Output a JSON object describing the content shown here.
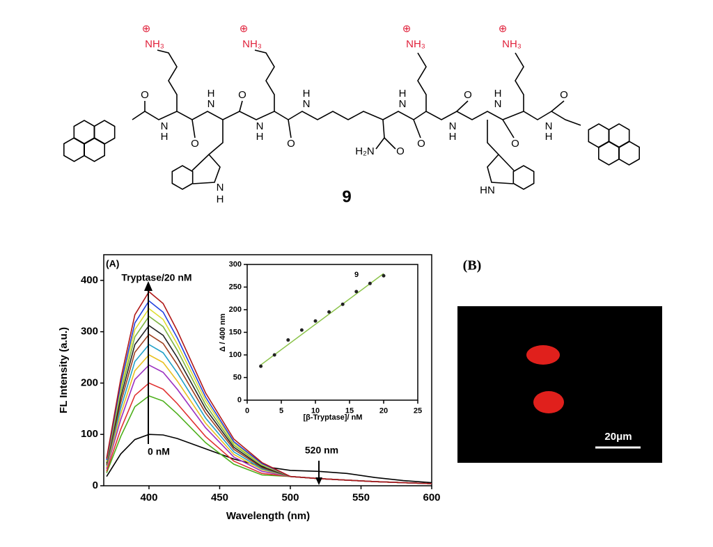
{
  "structure": {
    "charge": [
      "⊕",
      "⊕",
      "⊕",
      "⊕"
    ],
    "ammonium": [
      "NH₃",
      "NH₃",
      "NH₃",
      "NH₃"
    ],
    "atoms": [
      "O",
      "N",
      "H",
      "O",
      "H",
      "N",
      "O",
      "N",
      "H",
      "O",
      "H",
      "N",
      "O",
      "H",
      "N",
      "O",
      "N",
      "H",
      "O",
      "H",
      "N",
      "O",
      "N",
      "H",
      "O",
      "N",
      "H",
      "HN"
    ],
    "amide": "H₂N",
    "compound": "9"
  },
  "chart_data": [
    {
      "type": "line",
      "panel_label": "(A)",
      "x_label": "Wavelength (nm)",
      "y_label": "FL Intensity (a.u.)",
      "annotations": [
        "Tryptase/20 nM",
        "0 nM",
        "520 nm"
      ],
      "x": [
        370,
        380,
        390,
        400,
        410,
        420,
        440,
        460,
        480,
        500,
        520,
        540,
        560,
        580,
        600
      ],
      "xlim": [
        368,
        600
      ],
      "xticks": [
        400,
        450,
        500,
        550,
        600
      ],
      "ylim": [
        0,
        450
      ],
      "yticks": [
        0,
        100,
        200,
        300,
        400
      ],
      "series": [
        {
          "color": "#000000",
          "values": [
            18,
            62,
            90,
            100,
            99,
            92,
            72,
            52,
            38,
            30,
            28,
            24,
            16,
            10,
            6
          ]
        },
        {
          "color": "#4caf1a",
          "values": [
            25,
            96,
            154,
            175,
            165,
            140,
            84,
            42,
            21,
            18,
            14,
            11,
            8,
            6,
            4
          ]
        },
        {
          "color": "#e03030",
          "values": [
            28,
            110,
            176,
            200,
            188,
            160,
            96,
            48,
            24,
            18,
            14,
            11,
            8,
            6,
            4
          ]
        },
        {
          "color": "#9b30c0",
          "values": [
            33,
            129,
            207,
            235,
            221,
            188,
            113,
            56,
            28,
            18,
            14,
            11,
            8,
            6,
            4
          ]
        },
        {
          "color": "#e8c020",
          "values": [
            36,
            140,
            224,
            255,
            240,
            204,
            122,
            61,
            31,
            18,
            14,
            11,
            8,
            6,
            4
          ]
        },
        {
          "color": "#20a0c8",
          "values": [
            39,
            151,
            242,
            275,
            259,
            220,
            132,
            66,
            33,
            18,
            14,
            11,
            8,
            6,
            4
          ]
        },
        {
          "color": "#a04020",
          "values": [
            41,
            162,
            260,
            295,
            277,
            236,
            142,
            71,
            35,
            18,
            14,
            11,
            8,
            6,
            4
          ]
        },
        {
          "color": "#222222",
          "values": [
            44,
            172,
            275,
            312,
            293,
            250,
            150,
            75,
            37,
            18,
            14,
            11,
            8,
            6,
            4
          ]
        },
        {
          "color": "#7cb342",
          "values": [
            46,
            182,
            290,
            330,
            310,
            264,
            158,
            79,
            40,
            18,
            14,
            11,
            8,
            6,
            4
          ]
        },
        {
          "color": "#dede30",
          "values": [
            48,
            190,
            304,
            345,
            324,
            276,
            166,
            83,
            41,
            18,
            14,
            11,
            8,
            6,
            4
          ]
        },
        {
          "color": "#2040e0",
          "values": [
            50,
            198,
            317,
            360,
            338,
            288,
            173,
            86,
            43,
            18,
            14,
            11,
            8,
            6,
            4
          ]
        },
        {
          "color": "#b01818",
          "values": [
            53,
            208,
            333,
            378,
            355,
            302,
            181,
            91,
            45,
            18,
            14,
            11,
            8,
            6,
            4
          ]
        }
      ]
    },
    {
      "type": "scatter",
      "annotation": "9",
      "x_label": "[β-Tryptase]/ nM",
      "y_label": "Δ / 400 nm",
      "x": [
        2,
        4,
        6,
        8,
        10,
        12,
        14,
        16,
        18,
        20
      ],
      "values": [
        75,
        100,
        133,
        155,
        175,
        195,
        212,
        240,
        258,
        275
      ],
      "color": "#222222",
      "fit": {
        "x": [
          2,
          20
        ],
        "values": [
          78,
          280
        ],
        "color": "#8bc34a"
      },
      "xlim": [
        0,
        25
      ],
      "xticks": [
        0,
        5,
        10,
        15,
        20,
        25
      ],
      "ylim": [
        0,
        300
      ],
      "yticks": [
        0,
        50,
        100,
        150,
        200,
        250,
        300
      ]
    }
  ],
  "panel_b": {
    "label": "(B)",
    "scale_bar": "20μm"
  }
}
